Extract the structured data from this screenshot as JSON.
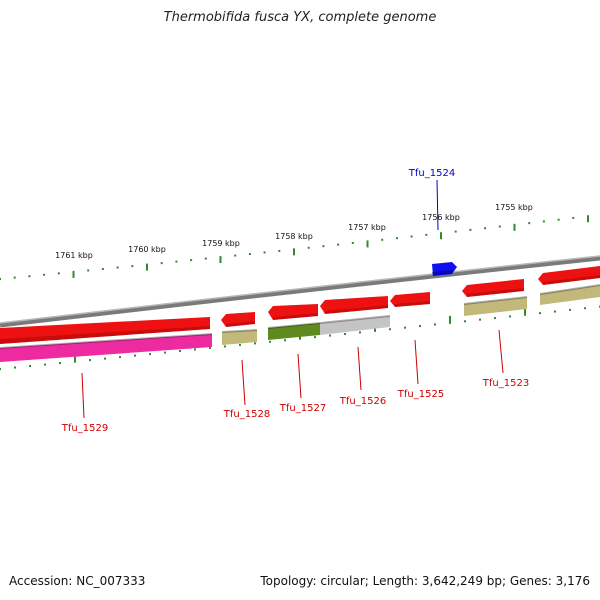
{
  "title": "Thermobifida fusca YX, complete genome",
  "footer": {
    "accession": "Accession: NC_007333",
    "summary": "Topology: circular; Length: 3,642,249 bp; Genes: 3,176"
  },
  "colors": {
    "backbone": "#8a8a8a",
    "ruler_ticks": "#2e8b2e",
    "gene_label_red": "#cc0000",
    "gene_label_blue": "#0000cc",
    "cds_red": "#ee1111",
    "cds_blue": "#1010ee",
    "magenta": "#ee2aa0",
    "olive": "#c2b87a",
    "dark_olive": "#5f8a1e",
    "light_gray": "#c4c4c4"
  },
  "scale": {
    "unit": "kbp",
    "major_labels": [
      "1761 kbp",
      "1760 kbp",
      "1759 kbp",
      "1758 kbp",
      "1757 kbp",
      "1756 kbp",
      "1755 kbp"
    ]
  },
  "genes": [
    {
      "label": "Tfu_1524",
      "color": "blue"
    },
    {
      "label": "Tfu_1529",
      "color": "red"
    },
    {
      "label": "Tfu_1528",
      "color": "red"
    },
    {
      "label": "Tfu_1527",
      "color": "red"
    },
    {
      "label": "Tfu_1526",
      "color": "red"
    },
    {
      "label": "Tfu_1525",
      "color": "red"
    },
    {
      "label": "Tfu_1523",
      "color": "red"
    }
  ]
}
